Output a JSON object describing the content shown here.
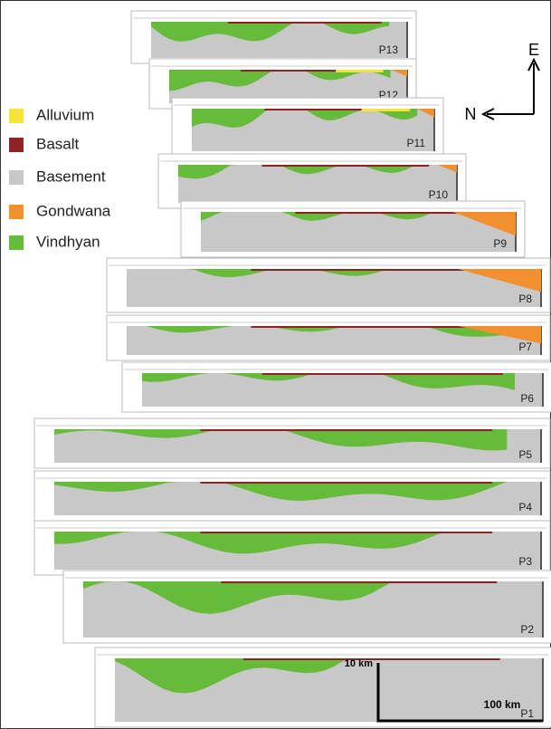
{
  "legend": [
    {
      "label": "Alluvium",
      "color": "#f7e23a"
    },
    {
      "label": "Basalt",
      "color": "#8e2323"
    },
    {
      "label": "Basement",
      "color": "#c8c8c8"
    },
    {
      "label": "Gondwana",
      "color": "#f29030"
    },
    {
      "label": "Vindhyan",
      "color": "#66bb3a"
    }
  ],
  "profiles": [
    "P13",
    "P12",
    "P11",
    "P10",
    "P9",
    "P8",
    "P7",
    "P6",
    "P5",
    "P4",
    "P3",
    "P2",
    "P1"
  ],
  "compass": {
    "east": "E",
    "north": "N"
  },
  "scale": {
    "vertical": "10 km",
    "horizontal": "100 km"
  }
}
